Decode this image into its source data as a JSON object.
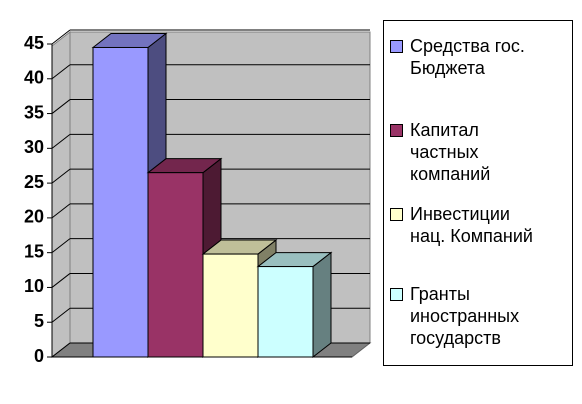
{
  "chart_data": {
    "type": "bar3d",
    "series": [
      {
        "name": "Средства гос.\nБюджета",
        "color": "#9999ff",
        "values": [
          44.5
        ]
      },
      {
        "name": "Капитал\nчастных\nкомпаний",
        "color": "#993366",
        "values": [
          26.5
        ]
      },
      {
        "name": "Инвестиции\nнац. Компаний",
        "color": "#ffffcc",
        "values": [
          14.8
        ]
      },
      {
        "name": "Гранты\nиностранных\nгосударств",
        "color": "#ccffff",
        "values": [
          13
        ]
      }
    ],
    "ylim": [
      0,
      45
    ],
    "yticks": [
      0,
      5,
      10,
      15,
      20,
      25,
      30,
      35,
      40,
      45
    ],
    "grid": true,
    "legend": "right"
  }
}
